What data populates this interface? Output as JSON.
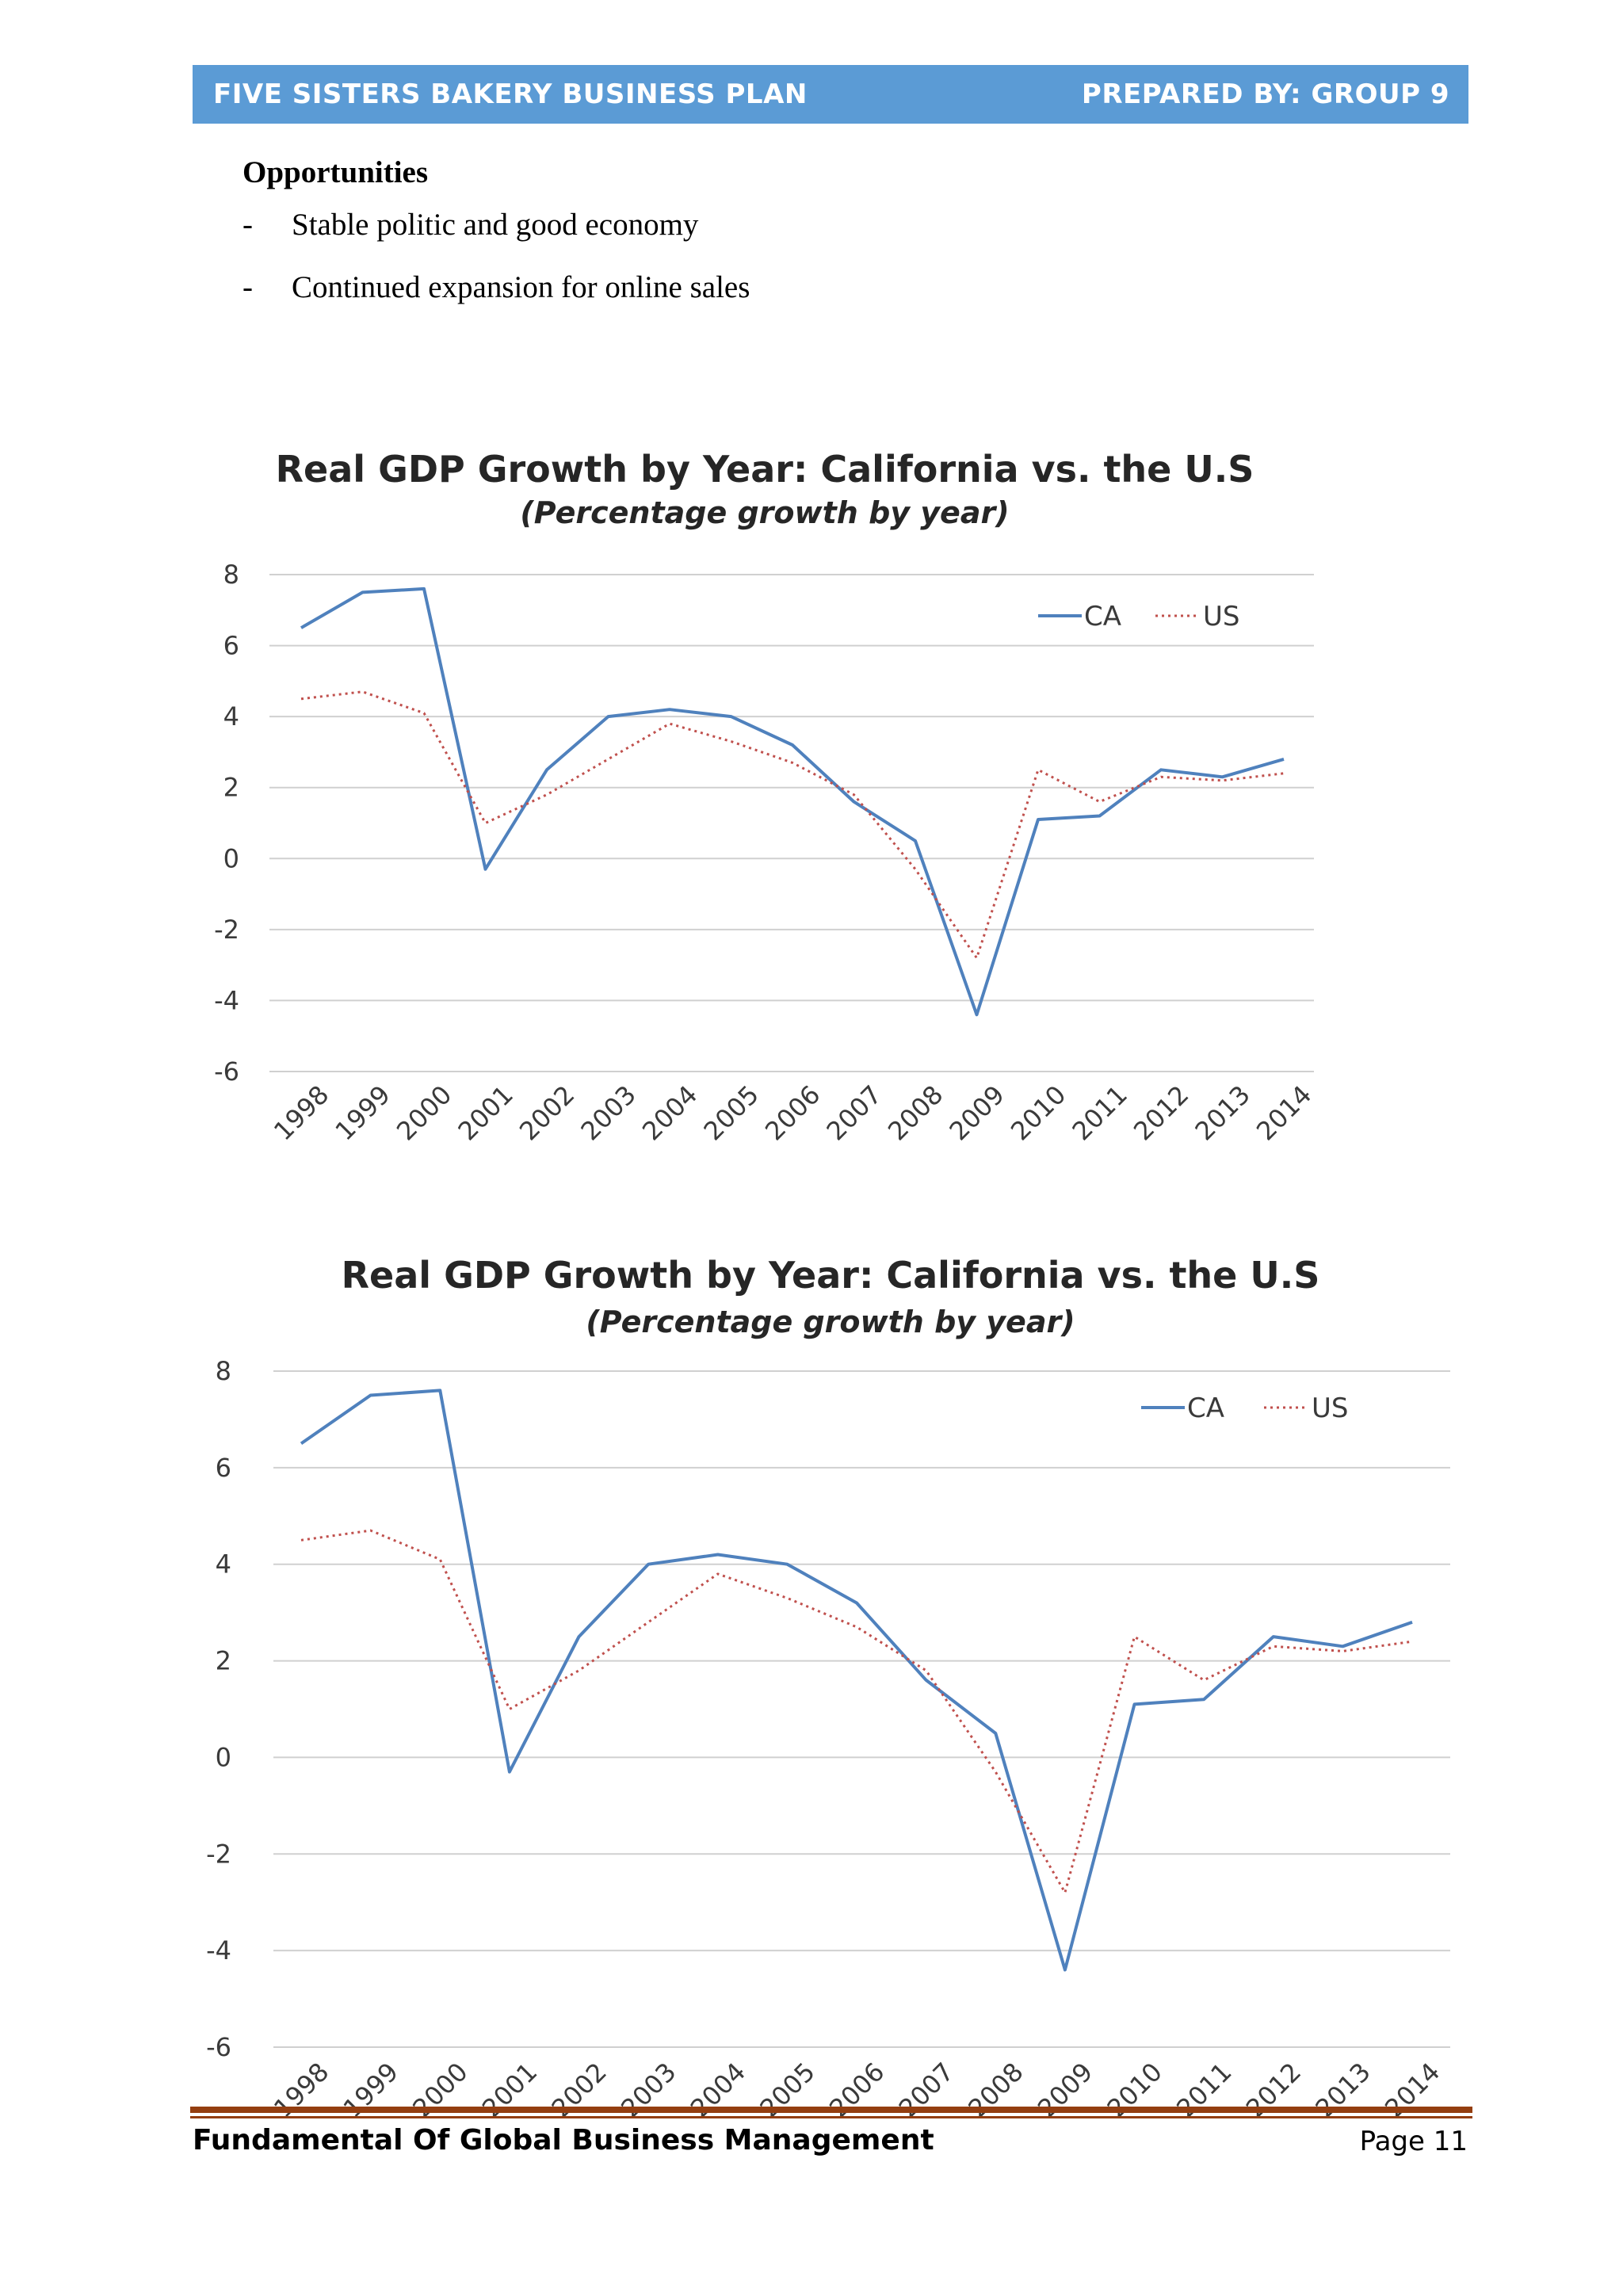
{
  "header": {
    "left": "FIVE SISTERS BAKERY BUSINESS PLAN",
    "right": "PREPARED BY: GROUP 9"
  },
  "opportunities": {
    "title": "Opportunities",
    "items": [
      {
        "bullet": "-",
        "text": "Stable politic and good economy"
      },
      {
        "bullet": "-",
        "text": "Continued expansion for online sales"
      }
    ]
  },
  "chart_data": [
    {
      "type": "line",
      "title": "Real GDP Growth by Year: California vs. the U.S",
      "subtitle": "(Percentage growth by year)",
      "xlabel": "",
      "ylabel": "",
      "x": [
        "1998",
        "1999",
        "2000",
        "2001",
        "2002",
        "2003",
        "2004",
        "2005",
        "2006",
        "2007",
        "2008",
        "2009",
        "2010",
        "2011",
        "2012",
        "2013",
        "2014"
      ],
      "yticks": [
        "8",
        "6",
        "4",
        "2",
        "0",
        "-2",
        "-4",
        "-6"
      ],
      "ylim": [
        -6,
        8
      ],
      "grid": true,
      "legend": "top-right",
      "series": [
        {
          "name": "CA",
          "color": "#4f81bd",
          "style": "solid",
          "values": [
            6.5,
            7.5,
            7.6,
            -0.3,
            2.5,
            4.0,
            4.2,
            4.0,
            3.2,
            1.6,
            0.5,
            -4.4,
            1.1,
            1.2,
            2.5,
            2.3,
            2.8
          ]
        },
        {
          "name": "US",
          "color": "#c0504d",
          "style": "dotted",
          "values": [
            4.5,
            4.7,
            4.1,
            1.0,
            1.8,
            2.8,
            3.8,
            3.3,
            2.7,
            1.8,
            -0.3,
            -2.8,
            2.5,
            1.6,
            2.3,
            2.2,
            2.4
          ]
        }
      ]
    },
    {
      "type": "line",
      "title": "Real GDP Growth by Year: California vs. the U.S",
      "subtitle": "(Percentage growth by year)",
      "xlabel": "",
      "ylabel": "",
      "x": [
        "1998",
        "1999",
        "2000",
        "2001",
        "2002",
        "2003",
        "2004",
        "2005",
        "2006",
        "2007",
        "2008",
        "2009",
        "2010",
        "2011",
        "2012",
        "2013",
        "2014"
      ],
      "yticks": [
        "8",
        "6",
        "4",
        "2",
        "0",
        "-2",
        "-4",
        "-6"
      ],
      "ylim": [
        -6,
        8
      ],
      "grid": true,
      "legend": "top-right",
      "series": [
        {
          "name": "CA",
          "color": "#4f81bd",
          "style": "solid",
          "values": [
            6.5,
            7.5,
            7.6,
            -0.3,
            2.5,
            4.0,
            4.2,
            4.0,
            3.2,
            1.6,
            0.5,
            -4.4,
            1.1,
            1.2,
            2.5,
            2.3,
            2.8
          ]
        },
        {
          "name": "US",
          "color": "#c0504d",
          "style": "dotted",
          "values": [
            4.5,
            4.7,
            4.1,
            1.0,
            1.8,
            2.8,
            3.8,
            3.3,
            2.7,
            1.8,
            -0.3,
            -2.8,
            2.5,
            1.6,
            2.3,
            2.2,
            2.4
          ]
        }
      ]
    }
  ],
  "footer": {
    "left": "Fundamental Of Global Business Management",
    "right": "Page 11"
  }
}
